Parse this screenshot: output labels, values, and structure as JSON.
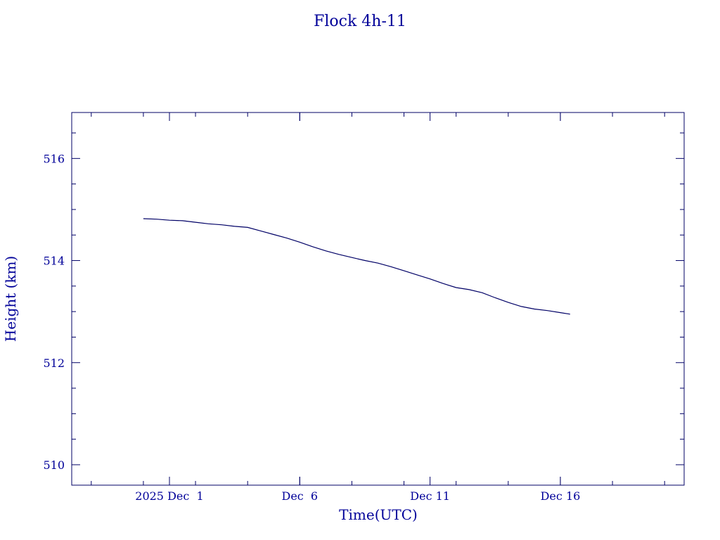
{
  "chart_data": {
    "type": "line",
    "title": "Flock 4h-11",
    "xlabel": "Time(UTC)",
    "ylabel": "Height (km)",
    "x_unit": "days",
    "xlim": [
      "2025-11-27T06:00Z",
      "2025-12-20T18:00Z"
    ],
    "ylim": [
      509.6,
      516.9
    ],
    "x_ticks": [
      {
        "x": "2025-12-01",
        "label": "2025 Dec  1"
      },
      {
        "x": "2025-12-06",
        "label": "Dec  6"
      },
      {
        "x": "2025-12-11",
        "label": "Dec 11"
      },
      {
        "x": "2025-12-16",
        "label": "Dec 16"
      }
    ],
    "y_ticks": [
      510,
      512,
      514,
      516
    ],
    "y_tick_labels": [
      "510",
      "512",
      "514",
      "516"
    ],
    "grid": false,
    "color": "#000066",
    "series": [
      {
        "x": [
          "2025-11-30T00:00Z",
          "2025-11-30T12:00Z",
          "2025-12-01T00:00Z",
          "2025-12-01T12:00Z",
          "2025-12-02T00:00Z",
          "2025-12-02T12:00Z",
          "2025-12-03T00:00Z",
          "2025-12-03T12:00Z",
          "2025-12-04T00:00Z",
          "2025-12-04T12:00Z",
          "2025-12-05T00:00Z",
          "2025-12-05T12:00Z",
          "2025-12-06T00:00Z",
          "2025-12-06T12:00Z",
          "2025-12-07T00:00Z",
          "2025-12-07T12:00Z",
          "2025-12-08T00:00Z",
          "2025-12-08T12:00Z",
          "2025-12-09T00:00Z",
          "2025-12-09T12:00Z",
          "2025-12-10T00:00Z",
          "2025-12-10T12:00Z",
          "2025-12-11T00:00Z",
          "2025-12-11T12:00Z",
          "2025-12-12T00:00Z",
          "2025-12-12T12:00Z",
          "2025-12-13T00:00Z",
          "2025-12-13T12:00Z",
          "2025-12-14T00:00Z",
          "2025-12-14T12:00Z",
          "2025-12-15T00:00Z",
          "2025-12-15T12:00Z",
          "2025-12-16T00:00Z",
          "2025-12-16T09:00Z"
        ],
        "y": [
          514.82,
          514.81,
          514.79,
          514.78,
          514.75,
          514.72,
          514.7,
          514.67,
          514.65,
          514.58,
          514.51,
          514.44,
          514.36,
          514.27,
          514.19,
          514.12,
          514.06,
          514.0,
          513.95,
          513.88,
          513.8,
          513.72,
          513.64,
          513.55,
          513.47,
          513.43,
          513.37,
          513.27,
          513.18,
          513.1,
          513.05,
          513.02,
          512.98,
          512.95
        ]
      }
    ]
  }
}
